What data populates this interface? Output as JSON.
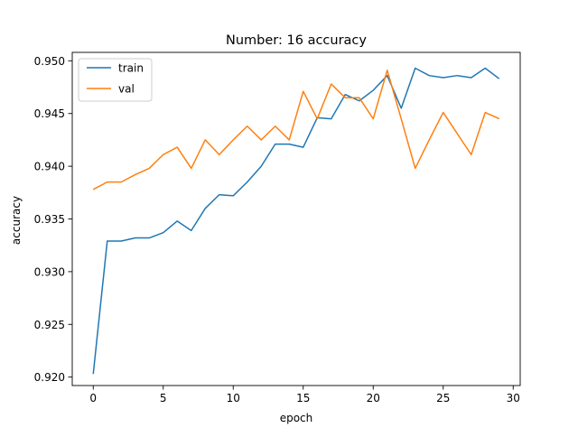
{
  "chart_data": {
    "type": "line",
    "title": "Number: 16 accuracy",
    "xlabel": "epoch",
    "ylabel": "accuracy",
    "xlim": [
      -1.5,
      30.5
    ],
    "ylim": [
      0.9192,
      0.9508
    ],
    "xticks": [
      0,
      5,
      10,
      15,
      20,
      25,
      30
    ],
    "xtick_labels": [
      "0",
      "5",
      "10",
      "15",
      "20",
      "25",
      "30"
    ],
    "yticks": [
      0.92,
      0.925,
      0.93,
      0.935,
      0.94,
      0.945,
      0.95
    ],
    "ytick_labels": [
      "0.920",
      "0.925",
      "0.930",
      "0.935",
      "0.940",
      "0.945",
      "0.950"
    ],
    "grid": false,
    "legend_position": "upper-left",
    "x": [
      0,
      1,
      2,
      3,
      4,
      5,
      6,
      7,
      8,
      9,
      10,
      11,
      12,
      13,
      14,
      15,
      16,
      17,
      18,
      19,
      20,
      21,
      22,
      23,
      24,
      25,
      26,
      27,
      28,
      29
    ],
    "series": [
      {
        "name": "train",
        "color": "#1f77b4",
        "values": [
          0.9203,
          0.9329,
          0.9329,
          0.9332,
          0.9332,
          0.9337,
          0.9348,
          0.9339,
          0.936,
          0.9373,
          0.9372,
          0.9385,
          0.94,
          0.9421,
          0.9421,
          0.9418,
          0.9446,
          0.9445,
          0.9468,
          0.9462,
          0.9472,
          0.9486,
          0.9455,
          0.9493,
          0.9486,
          0.9484,
          0.9486,
          0.9484,
          0.9493,
          0.9483
        ]
      },
      {
        "name": "val",
        "color": "#ff7f0e",
        "values": [
          0.9378,
          0.9385,
          0.9385,
          0.9392,
          0.9398,
          0.9411,
          0.9418,
          0.9398,
          0.9425,
          0.9411,
          0.9425,
          0.9438,
          0.9425,
          0.9438,
          0.9425,
          0.9471,
          0.9445,
          0.9478,
          0.9465,
          0.9465,
          0.9445,
          0.9491,
          0.9445,
          0.9398,
          0.9425,
          0.9451,
          0.9431,
          0.9411,
          0.9451,
          0.9445
        ]
      }
    ]
  }
}
